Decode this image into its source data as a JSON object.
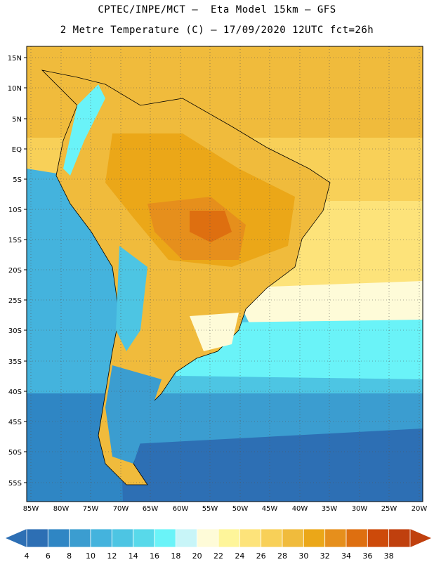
{
  "header": {
    "line1": "CPTEC/INPE/MCT –  Eta Model 15km – GFS",
    "line2": "2 Metre Temperature (C) – 17/09/2020 12UTC fct=26h"
  },
  "map": {
    "lat_labels": [
      "15N",
      "10N",
      "5N",
      "EQ",
      "5S",
      "10S",
      "15S",
      "20S",
      "25S",
      "30S",
      "35S",
      "40S",
      "45S",
      "50S",
      "55S"
    ],
    "lon_labels": [
      "85W",
      "80W",
      "75W",
      "70W",
      "65W",
      "60W",
      "55W",
      "50W",
      "45W",
      "40W",
      "35W",
      "30W",
      "25W",
      "20W"
    ]
  },
  "colorbar": {
    "labels": [
      "4",
      "6",
      "8",
      "10",
      "12",
      "14",
      "16",
      "18",
      "20",
      "22",
      "24",
      "26",
      "28",
      "30",
      "32",
      "34",
      "36",
      "38"
    ],
    "colors": [
      "#2d6fb4",
      "#2f86c4",
      "#3b9dd0",
      "#44b3dd",
      "#4dc5e3",
      "#58d9ea",
      "#6af3f8",
      "#c8f5f8",
      "#fefbd8",
      "#fef59a",
      "#fde37a",
      "#f8d058",
      "#f0bb3c",
      "#eba718",
      "#e68f1c",
      "#de6f10",
      "#cd4a0a",
      "#c0400e"
    ],
    "left_arrow_color": "#2d6fb4",
    "right_arrow_color": "#c0400e"
  }
}
